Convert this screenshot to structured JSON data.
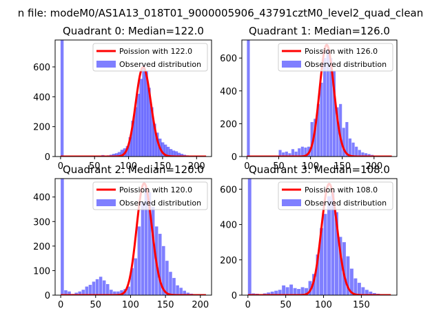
{
  "suptitle": "n file: modeM0/AS1A13_018T01_9000005906_43791cztM0_level2_quad_clean",
  "colors": {
    "observed": "#0000ff",
    "observed_alpha": 0.5,
    "poisson": "#ff0000",
    "poisson_alpha": 1.0
  },
  "legend": {
    "poisson_label_prefix": "Poission with ",
    "observed_label": "Observed distribution",
    "placement": "top-right"
  },
  "chart_data": [
    {
      "type": "bar",
      "title": "Quadrant 0: Median=122.0",
      "median": 122.0,
      "poisson_label": "Poission with 122.0",
      "xlim": [
        -8,
        222
      ],
      "ylim": [
        0,
        780
      ],
      "xticks": [
        0,
        50,
        100,
        150,
        200
      ],
      "yticks": [
        0,
        200,
        400,
        600
      ],
      "poisson_peak": 598,
      "hist": [
        [
          0,
          780,
          4.5
        ],
        [
          52,
          2
        ],
        [
          56,
          5
        ],
        [
          60,
          10
        ],
        [
          64,
          5
        ],
        [
          68,
          8
        ],
        [
          72,
          12
        ],
        [
          76,
          18
        ],
        [
          80,
          22
        ],
        [
          84,
          30
        ],
        [
          88,
          45
        ],
        [
          92,
          55
        ],
        [
          96,
          70
        ],
        [
          100,
          130
        ],
        [
          104,
          240
        ],
        [
          108,
          330
        ],
        [
          112,
          420
        ],
        [
          116,
          520
        ],
        [
          120,
          610
        ],
        [
          124,
          575
        ],
        [
          128,
          460
        ],
        [
          132,
          330
        ],
        [
          136,
          220
        ],
        [
          140,
          160
        ],
        [
          144,
          120
        ],
        [
          148,
          95
        ],
        [
          152,
          80
        ],
        [
          156,
          65
        ],
        [
          160,
          50
        ],
        [
          164,
          40
        ],
        [
          168,
          35
        ],
        [
          172,
          25
        ],
        [
          176,
          18
        ],
        [
          180,
          12
        ],
        [
          184,
          8
        ],
        [
          188,
          6
        ],
        [
          192,
          4
        ],
        [
          196,
          3
        ],
        [
          200,
          2
        ]
      ]
    },
    {
      "type": "bar",
      "title": "Quadrant 1: Median=126.0",
      "median": 126.0,
      "poisson_label": "Poission with 126.0",
      "xlim": [
        -8,
        236
      ],
      "ylim": [
        0,
        710
      ],
      "xticks": [
        0,
        50,
        100,
        150,
        200
      ],
      "yticks": [
        0,
        200,
        400,
        600
      ],
      "poisson_peak": 680,
      "hist": [
        [
          0,
          710,
          4.5
        ],
        [
          45,
          5
        ],
        [
          50,
          40
        ],
        [
          55,
          25
        ],
        [
          60,
          30
        ],
        [
          65,
          20
        ],
        [
          70,
          45
        ],
        [
          75,
          30
        ],
        [
          80,
          50
        ],
        [
          85,
          60
        ],
        [
          90,
          55
        ],
        [
          95,
          60
        ],
        [
          100,
          210
        ],
        [
          105,
          230
        ],
        [
          110,
          320
        ],
        [
          115,
          450
        ],
        [
          120,
          600
        ],
        [
          125,
          650
        ],
        [
          130,
          600
        ],
        [
          135,
          520
        ],
        [
          140,
          300
        ],
        [
          145,
          320
        ],
        [
          150,
          175
        ],
        [
          155,
          210
        ],
        [
          160,
          110
        ],
        [
          165,
          85
        ],
        [
          170,
          60
        ],
        [
          175,
          40
        ],
        [
          180,
          25
        ],
        [
          185,
          20
        ],
        [
          190,
          15
        ],
        [
          195,
          10
        ],
        [
          200,
          6
        ],
        [
          205,
          4
        ]
      ]
    },
    {
      "type": "bar",
      "title": "Quadrant 2: Median=120.0",
      "median": 120.0,
      "poisson_label": "Poission with 120.0",
      "xlim": [
        -8,
        216
      ],
      "ylim": [
        0,
        475
      ],
      "xticks": [
        0,
        50,
        100,
        150,
        200
      ],
      "yticks": [
        0,
        100,
        200,
        300,
        400
      ],
      "poisson_peak": 455,
      "hist": [
        [
          0,
          475,
          4.5
        ],
        [
          5,
          20
        ],
        [
          10,
          15
        ],
        [
          15,
          5
        ],
        [
          20,
          10
        ],
        [
          25,
          15
        ],
        [
          30,
          22
        ],
        [
          35,
          35
        ],
        [
          40,
          42
        ],
        [
          45,
          55
        ],
        [
          50,
          65
        ],
        [
          55,
          75
        ],
        [
          60,
          60
        ],
        [
          65,
          45
        ],
        [
          70,
          22
        ],
        [
          75,
          15
        ],
        [
          80,
          15
        ],
        [
          85,
          20
        ],
        [
          90,
          25
        ],
        [
          95,
          35
        ],
        [
          100,
          110
        ],
        [
          105,
          150
        ],
        [
          110,
          280
        ],
        [
          115,
          380
        ],
        [
          120,
          440
        ],
        [
          125,
          420
        ],
        [
          130,
          360
        ],
        [
          135,
          280
        ],
        [
          140,
          250
        ],
        [
          145,
          200
        ],
        [
          150,
          140
        ],
        [
          155,
          95
        ],
        [
          160,
          70
        ],
        [
          165,
          40
        ],
        [
          170,
          30
        ],
        [
          175,
          18
        ],
        [
          180,
          10
        ],
        [
          185,
          6
        ]
      ]
    },
    {
      "type": "bar",
      "title": "Quadrant 3: Median=108.0",
      "median": 108.0,
      "poisson_label": "Poission with 108.0",
      "xlim": [
        -8,
        197
      ],
      "ylim": [
        0,
        660
      ],
      "xticks": [
        0,
        50,
        100,
        150
      ],
      "yticks": [
        0,
        200,
        400,
        600
      ],
      "poisson_peak": 630,
      "hist": [
        [
          0,
          660,
          4.5
        ],
        [
          5,
          10
        ],
        [
          10,
          8
        ],
        [
          15,
          5
        ],
        [
          20,
          10
        ],
        [
          25,
          15
        ],
        [
          30,
          20
        ],
        [
          35,
          25
        ],
        [
          40,
          30
        ],
        [
          45,
          55
        ],
        [
          50,
          45
        ],
        [
          55,
          60
        ],
        [
          60,
          40
        ],
        [
          65,
          35
        ],
        [
          70,
          45
        ],
        [
          75,
          40
        ],
        [
          80,
          80
        ],
        [
          85,
          120
        ],
        [
          90,
          230
        ],
        [
          95,
          380
        ],
        [
          100,
          460
        ],
        [
          105,
          560
        ],
        [
          110,
          590
        ],
        [
          115,
          470
        ],
        [
          120,
          330
        ],
        [
          125,
          300
        ],
        [
          130,
          220
        ],
        [
          135,
          150
        ],
        [
          140,
          95
        ],
        [
          145,
          70
        ],
        [
          150,
          45
        ],
        [
          155,
          30
        ],
        [
          160,
          20
        ],
        [
          165,
          12
        ],
        [
          170,
          8
        ],
        [
          175,
          4
        ]
      ]
    }
  ]
}
